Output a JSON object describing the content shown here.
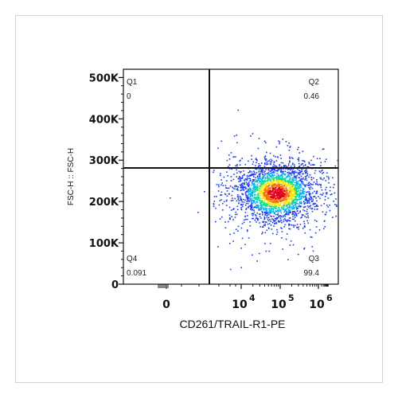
{
  "chart_data": {
    "type": "scatter",
    "title": "",
    "xlabel": "CD261/TRAIL-R1-PE",
    "ylabel": "FSC-H :: FSC-H",
    "y_ticks": [
      "0",
      "100K",
      "200K",
      "300K",
      "400K",
      "500K"
    ],
    "y_tick_values": [
      0,
      100000,
      200000,
      300000,
      400000,
      500000
    ],
    "ylim": [
      0,
      520000
    ],
    "x_ticks": [
      {
        "base": "0",
        "exp": ""
      },
      {
        "base": "10",
        "exp": "4"
      },
      {
        "base": "10",
        "exp": "5"
      },
      {
        "base": "10",
        "exp": "6"
      }
    ],
    "x_scale": "biexponential",
    "gate": {
      "x": 1500,
      "y": 282000
    },
    "quadrants": [
      {
        "name": "Q1",
        "value": "0",
        "position": "top-left"
      },
      {
        "name": "Q2",
        "value": "0.46",
        "position": "top-right"
      },
      {
        "name": "Q3",
        "value": "99.4",
        "position": "bottom-right"
      },
      {
        "name": "Q4",
        "value": "0.091",
        "position": "bottom-left"
      }
    ],
    "population": {
      "x_center": 80000,
      "y_center": 222000,
      "note": "density-colored events, main cluster in Q3"
    },
    "grid": false,
    "density_colors": [
      "#1a3cff",
      "#00b4ff",
      "#00e08a",
      "#ffe600",
      "#ff6a00",
      "#e0001a"
    ]
  }
}
